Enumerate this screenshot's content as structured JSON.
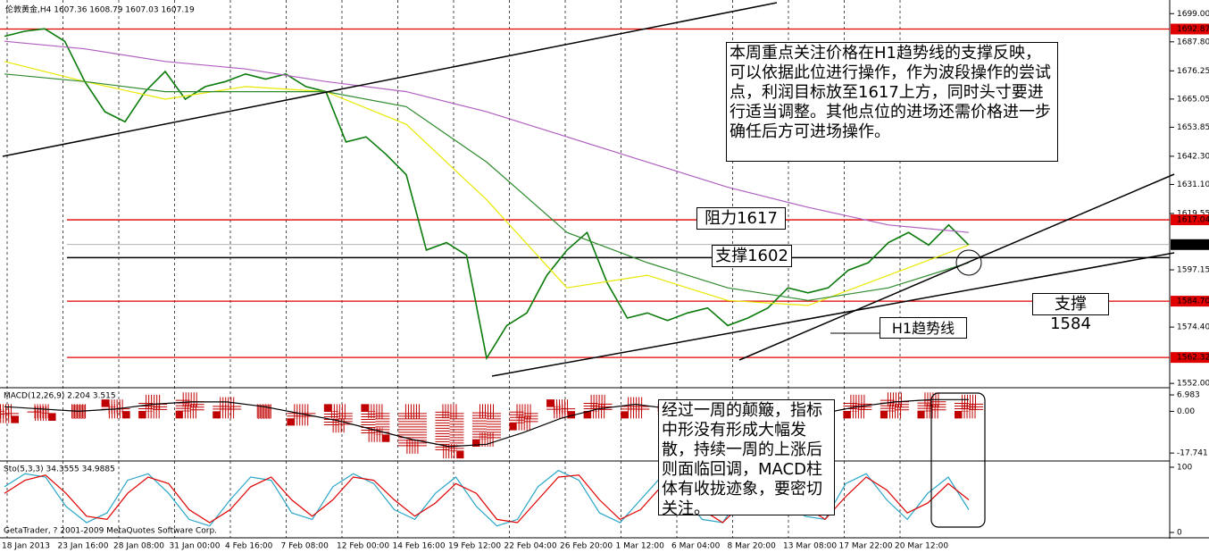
{
  "chart_data": [
    {
      "type": "line",
      "title": "伦敦黄金,H4 1607.36 1608.79 1607.03 1607.19",
      "ylim": [
        1551,
        1703
      ],
      "yticks": [
        {
          "value": 1699,
          "label": "1699.00"
        },
        {
          "value": 1687.8,
          "label": "1687.80"
        },
        {
          "value": 1676.25,
          "label": "1676.25"
        },
        {
          "value": 1665.05,
          "label": "1665.05"
        },
        {
          "value": 1653.85,
          "label": "1653.85"
        },
        {
          "value": 1642.3,
          "label": "1642.30"
        },
        {
          "value": 1631.1,
          "label": "1631.10"
        },
        {
          "value": 1619.55,
          "label": "1619.55"
        },
        {
          "value": 1597.15,
          "label": "1597.15"
        },
        {
          "value": 1574.4,
          "label": "1574.40"
        },
        {
          "value": 1552,
          "label": "1552.00"
        }
      ],
      "levels": [
        {
          "value": 1692.87,
          "color": "#e00000"
        },
        {
          "value": 1617.04,
          "color": "#e00000"
        },
        {
          "value": 1607.19,
          "color": "#000000"
        },
        {
          "value": 1584.7,
          "label": "1584.70",
          "color": "#e00000"
        },
        {
          "value": 1562.32,
          "color": "#e00000"
        }
      ],
      "support_line": 1602,
      "series": [
        {
          "color": "#0a7a0a",
          "values": [
            1690,
            1692,
            1693,
            1688,
            1672,
            1660,
            1656,
            1668,
            1676,
            1665,
            1670,
            1672,
            1675,
            1673,
            1675,
            1670,
            1668,
            1648,
            1650,
            1643,
            1635,
            1605,
            1608,
            1603,
            1562,
            1575,
            1580,
            1595,
            1605,
            1612,
            1592,
            1578,
            1580,
            1577,
            1580,
            1582,
            1575,
            1578,
            1582,
            1590,
            1588,
            1590,
            1597,
            1600,
            1608,
            1612,
            1607,
            1615,
            1607
          ]
        },
        {
          "color": "#e8e800",
          "values": [
            1680,
            1672,
            1665,
            1670,
            1668,
            1655,
            1625,
            1590,
            1595,
            1585,
            1583,
            1595,
            1607
          ]
        },
        {
          "color": "#2e8b2e",
          "values": [
            1675,
            1672,
            1668,
            1668,
            1668,
            1662,
            1640,
            1612,
            1600,
            1590,
            1585,
            1590,
            1600
          ]
        },
        {
          "color": "#b060c0",
          "values": [
            1688,
            1685,
            1680,
            1677,
            1672,
            1668,
            1660,
            1650,
            1640,
            1630,
            1622,
            1615,
            1612
          ]
        }
      ],
      "annotations": [
        "本周重点关注价格在H1趋势线的支撑反映，可以依据此位进行操作，作为波段操作的尝试点，利润目标放至1617上方，同时头寸要进行适当调整。其他点位的进场还需价格进一步确任后方可进场操作。",
        "阻力1617",
        "支撑1602",
        "支撑1584",
        "H1趋势线"
      ]
    },
    {
      "type": "bar",
      "title": "MACD(12,26,9) 2.204 3.515",
      "ylim": [
        -19.6,
        8.9
      ],
      "yticks": [
        {
          "value": 6.983,
          "label": "6.983"
        },
        {
          "value": 0,
          "label": "0.00"
        },
        {
          "value": -17.741,
          "label": "-17.741"
        }
      ],
      "series": [
        {
          "color": "#c00000",
          "values": [
            -2,
            -1,
            0,
            2,
            4,
            5,
            3,
            0,
            -3,
            -6,
            -10,
            -15,
            -17,
            -12,
            -5,
            2,
            4,
            3,
            -2,
            -4,
            -4,
            -2,
            1,
            4,
            5,
            5,
            4
          ]
        },
        {
          "color": "#000000",
          "values": [
            2,
            1,
            0,
            1,
            3,
            4,
            4,
            2,
            -1,
            -4,
            -8,
            -12,
            -15,
            -14,
            -9,
            -3,
            1,
            3,
            1,
            -2,
            -3,
            -3,
            -1,
            2,
            4,
            5,
            5
          ]
        }
      ],
      "annotations": [
        "经过一周的颠簸，指标中形没有形成大幅发散，持续一周的上涨后则面临回调，MACD柱体有收拢迹象，要密切关注。"
      ]
    },
    {
      "type": "line",
      "title": "Sto(5,3,3) 34.3555 34.9885",
      "ylim": [
        0,
        100
      ],
      "yticks": [
        100,
        0
      ],
      "series": [
        {
          "color": "#2aa6c8",
          "values": [
            70,
            90,
            85,
            40,
            15,
            30,
            80,
            90,
            60,
            20,
            10,
            50,
            85,
            80,
            30,
            20,
            70,
            90,
            75,
            35,
            20,
            60,
            85,
            40,
            10,
            20,
            70,
            95,
            80,
            30,
            15,
            50,
            85,
            60,
            20,
            15,
            60,
            90,
            70,
            25,
            20,
            75,
            90,
            50,
            20,
            60,
            85,
            35
          ]
        },
        {
          "color": "#e00000",
          "values": [
            60,
            80,
            88,
            60,
            25,
            20,
            60,
            85,
            75,
            35,
            15,
            35,
            70,
            85,
            50,
            25,
            50,
            85,
            80,
            50,
            25,
            45,
            75,
            60,
            20,
            15,
            50,
            85,
            88,
            50,
            20,
            35,
            70,
            70,
            35,
            15,
            45,
            80,
            80,
            40,
            20,
            55,
            85,
            65,
            30,
            45,
            75,
            50
          ]
        }
      ],
      "x_labels": [
        "18 Jan 2013",
        "23 Jan 16:00",
        "28 Jan 08:00",
        "31 Jan 00:00",
        "4 Feb 16:00",
        "7 Feb 08:00",
        "12 Feb 00:00",
        "14 Feb 16:00",
        "19 Feb 12:00",
        "22 Feb 04:00",
        "26 Feb 20:00",
        "1 Mar 12:00",
        "6 Mar 04:00",
        "8 Mar 20:00",
        "13 Mar 08:00",
        "17 Mar 22:00",
        "20 Mar 12:00"
      ],
      "footer": "GetaTrader, ? 2001-2009 MetaQuotes Software Corp."
    }
  ]
}
